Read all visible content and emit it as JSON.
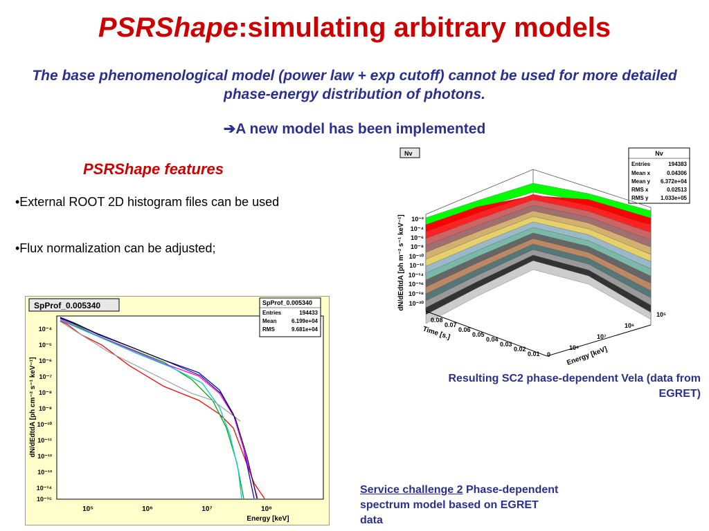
{
  "title": {
    "italic": "PSRShape",
    "rest": ":simulating arbitrary models"
  },
  "subtitle": "The base phenomenological model (power law + exp cutoff) cannot be used for more detailed phase-energy distribution of photons.",
  "new_model": "➔A new model has been implemented",
  "features": {
    "title": "PSRShape features",
    "bullets": [
      "•External ROOT 2D histogram files can be used",
      "•Flux normalization can be adjusted;"
    ]
  },
  "plot2d": {
    "name_box": "SpProf_0.005340",
    "stats": {
      "title": "SpProf_0.005340",
      "rows": [
        {
          "label": "Entries",
          "value": "194433"
        },
        {
          "label": "Mean",
          "value": "6.199e+04"
        },
        {
          "label": "RMS",
          "value": "9.681e+04"
        }
      ]
    },
    "ylabel": "dN/dEdtdA [ph cm⁻² s⁻¹ keV⁻¹]",
    "xlabel": "Energy [keV]",
    "y_ticks": [
      "10⁻⁴",
      "10⁻⁵",
      "10⁻⁶",
      "10⁻⁷",
      "10⁻⁸",
      "10⁻⁹",
      "10⁻¹⁰",
      "10⁻¹¹",
      "10⁻¹²",
      "10⁻¹³",
      "10⁻¹⁴",
      "10⁻¹⁵"
    ],
    "x_ticks": [
      "10⁵",
      "10⁶",
      "10⁷",
      "10⁸"
    ],
    "colors": [
      "#ff0000",
      "#00aa00",
      "#0000ff",
      "#ff00ff",
      "#00cccc",
      "#999999",
      "#000000"
    ]
  },
  "plot3d": {
    "name_box": "Nv",
    "stats": {
      "title": "Nv",
      "rows": [
        {
          "label": "Entries",
          "value": "194383"
        },
        {
          "label": "Mean x",
          "value": "0.04306"
        },
        {
          "label": "Mean y",
          "value": "6.372e+04"
        },
        {
          "label": "RMS x",
          "value": "0.02513"
        },
        {
          "label": "RMS y",
          "value": "1.033e+05"
        }
      ]
    },
    "zlabel": "dN/dEdtdA [ph m⁻² s⁻¹ keV⁻¹]",
    "z_ticks": [
      "10⁻²",
      "10⁻⁴",
      "10⁻⁶",
      "10⁻⁸",
      "10⁻¹⁰",
      "10⁻¹²",
      "10⁻¹⁴",
      "10⁻¹⁶",
      "10⁻¹⁸",
      "10⁻²⁰"
    ],
    "time_label": "Time [s.]",
    "time_ticks": [
      "0.08",
      "0.07",
      "0.06",
      "0.05",
      "0.04",
      "0.03",
      "0.02",
      "0.01",
      "0"
    ],
    "energy_label": "Energy [keV]",
    "energy_ticks": [
      "10⁵",
      "10⁶",
      "10⁷",
      "10⁸"
    ],
    "band_colors": [
      "#00ff00",
      "#ff0000",
      "#ff2222",
      "#cc6666",
      "#a07070",
      "#d4b070",
      "#e6d06a",
      "#99b8c8",
      "#7ab8a8",
      "#666666",
      "#bb8866",
      "#557777",
      "#999999",
      "#333333",
      "#cccccc"
    ]
  },
  "caption_3d": "Resulting SC2 phase-dependent Vela (data from EGRET)",
  "service": {
    "link": "Service challenge 2",
    "rest": " Phase-dependent spectrum model based on EGRET data"
  }
}
